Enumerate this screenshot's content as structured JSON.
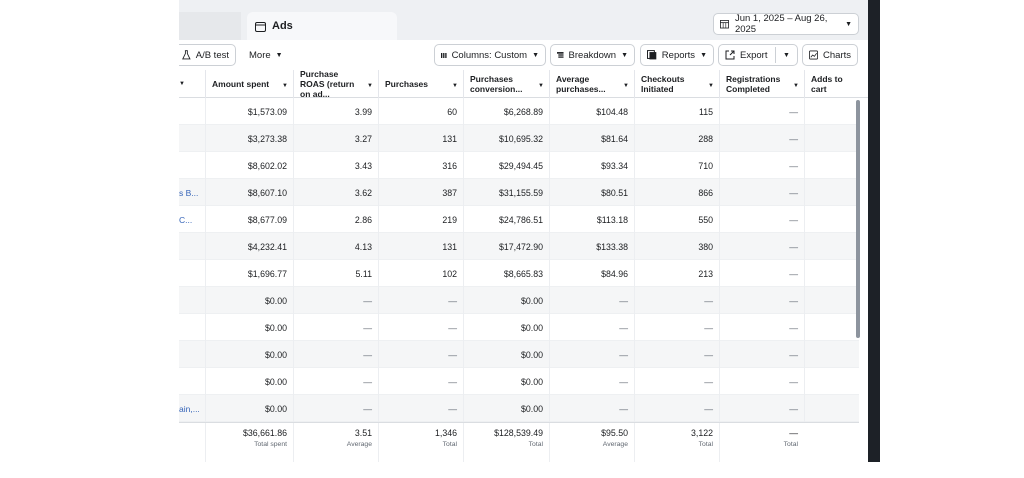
{
  "tabs": {
    "ads": "Ads"
  },
  "date_range": "Jun 1, 2025 – Aug 26, 2025",
  "toolbar": {
    "ab_test": "A/B test",
    "more": "More",
    "columns": "Columns: Custom",
    "breakdown": "Breakdown",
    "reports": "Reports",
    "export": "Export",
    "charts": "Charts"
  },
  "columns": [
    "Amount spent",
    "Purchase ROAS (return on ad...",
    "Purchases",
    "Purchases conversion...",
    "Average purchases...",
    "Checkouts Initiated",
    "Registrations Completed",
    "Adds to cart"
  ],
  "rows": [
    {
      "name": "",
      "spent": "$1,573.09",
      "roas": "3.99",
      "purchases": "60",
      "conv": "$6,268.89",
      "avg": "$104.48",
      "checkouts": "115",
      "reg": "—",
      "cart": ""
    },
    {
      "name": "",
      "spent": "$3,273.38",
      "roas": "3.27",
      "purchases": "131",
      "conv": "$10,695.32",
      "avg": "$81.64",
      "checkouts": "288",
      "reg": "—",
      "cart": ""
    },
    {
      "name": "",
      "spent": "$8,602.02",
      "roas": "3.43",
      "purchases": "316",
      "conv": "$29,494.45",
      "avg": "$93.34",
      "checkouts": "710",
      "reg": "—",
      "cart": ""
    },
    {
      "name": "s B...",
      "spent": "$8,607.10",
      "roas": "3.62",
      "purchases": "387",
      "conv": "$31,155.59",
      "avg": "$80.51",
      "checkouts": "866",
      "reg": "—",
      "cart": ""
    },
    {
      "name": "C...",
      "spent": "$8,677.09",
      "roas": "2.86",
      "purchases": "219",
      "conv": "$24,786.51",
      "avg": "$113.18",
      "checkouts": "550",
      "reg": "—",
      "cart": ""
    },
    {
      "name": "",
      "spent": "$4,232.41",
      "roas": "4.13",
      "purchases": "131",
      "conv": "$17,472.90",
      "avg": "$133.38",
      "checkouts": "380",
      "reg": "—",
      "cart": ""
    },
    {
      "name": "",
      "spent": "$1,696.77",
      "roas": "5.11",
      "purchases": "102",
      "conv": "$8,665.83",
      "avg": "$84.96",
      "checkouts": "213",
      "reg": "—",
      "cart": ""
    },
    {
      "name": "",
      "spent": "$0.00",
      "roas": "—",
      "purchases": "—",
      "conv": "$0.00",
      "avg": "—",
      "checkouts": "—",
      "reg": "—",
      "cart": ""
    },
    {
      "name": "",
      "spent": "$0.00",
      "roas": "—",
      "purchases": "—",
      "conv": "$0.00",
      "avg": "—",
      "checkouts": "—",
      "reg": "—",
      "cart": ""
    },
    {
      "name": "",
      "spent": "$0.00",
      "roas": "—",
      "purchases": "—",
      "conv": "$0.00",
      "avg": "—",
      "checkouts": "—",
      "reg": "—",
      "cart": ""
    },
    {
      "name": "",
      "spent": "$0.00",
      "roas": "—",
      "purchases": "—",
      "conv": "$0.00",
      "avg": "—",
      "checkouts": "—",
      "reg": "—",
      "cart": ""
    },
    {
      "name": "ain,...",
      "spent": "$0.00",
      "roas": "—",
      "purchases": "—",
      "conv": "$0.00",
      "avg": "—",
      "checkouts": "—",
      "reg": "—",
      "cart": ""
    }
  ],
  "totals": [
    {
      "value": "$36,661.86",
      "label": "Total spent"
    },
    {
      "value": "3.51",
      "label": "Average"
    },
    {
      "value": "1,346",
      "label": "Total"
    },
    {
      "value": "$128,539.49",
      "label": "Total"
    },
    {
      "value": "$95.50",
      "label": "Average"
    },
    {
      "value": "3,122",
      "label": "Total"
    },
    {
      "value": "—",
      "label": "Total"
    }
  ],
  "colors": {
    "link": "#3564b8",
    "border": "#ccd0d5",
    "row_alt": "#f5f6f7"
  }
}
